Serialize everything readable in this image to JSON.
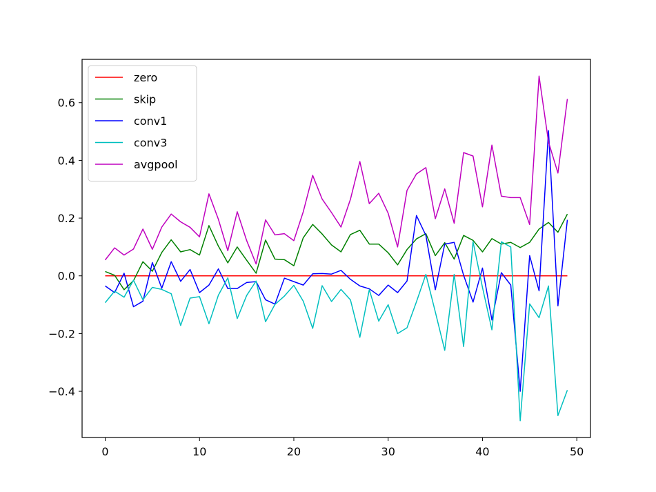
{
  "chart_data": {
    "type": "line",
    "title": "",
    "xlabel": "",
    "ylabel": "",
    "xlim": [
      -2.45,
      51.45
    ],
    "ylim": [
      -0.56,
      0.75
    ],
    "xticks": [
      0,
      10,
      20,
      30,
      40,
      50
    ],
    "yticks": [
      -0.4,
      -0.2,
      0.0,
      0.2,
      0.4,
      0.6
    ],
    "xtick_labels": [
      "0",
      "10",
      "20",
      "30",
      "40",
      "50"
    ],
    "ytick_labels": [
      "−0.4",
      "−0.2",
      "0.0",
      "0.2",
      "0.4",
      "0.6"
    ],
    "grid": false,
    "legend_position": "upper-left",
    "x": [
      0,
      1,
      2,
      3,
      4,
      5,
      6,
      7,
      8,
      9,
      10,
      11,
      12,
      13,
      14,
      15,
      16,
      17,
      18,
      19,
      20,
      21,
      22,
      23,
      24,
      25,
      26,
      27,
      28,
      29,
      30,
      31,
      32,
      33,
      34,
      35,
      36,
      37,
      38,
      39,
      40,
      41,
      42,
      43,
      44,
      45,
      46,
      47,
      48,
      49
    ],
    "series": [
      {
        "name": "zero",
        "color": "#ff0000",
        "values": [
          0,
          0,
          0,
          0,
          0,
          0,
          0,
          0,
          0,
          0,
          0,
          0,
          0,
          0,
          0,
          0,
          0,
          0,
          0,
          0,
          0,
          0,
          0,
          0,
          0,
          0,
          0,
          0,
          0,
          0,
          0,
          0,
          0,
          0,
          0,
          0,
          0,
          0,
          0,
          0,
          0,
          0,
          0,
          0,
          0,
          0,
          0,
          0,
          0,
          0
        ]
      },
      {
        "name": "skip",
        "color": "#008000",
        "values": [
          0.015,
          0.002,
          -0.048,
          -0.017,
          0.049,
          0.016,
          0.081,
          0.125,
          0.083,
          0.091,
          0.072,
          0.174,
          0.103,
          0.045,
          0.1,
          0.054,
          0.009,
          0.124,
          0.058,
          0.056,
          0.035,
          0.132,
          0.178,
          0.145,
          0.107,
          0.083,
          0.143,
          0.158,
          0.11,
          0.11,
          0.08,
          0.038,
          0.091,
          0.128,
          0.146,
          0.07,
          0.115,
          0.058,
          0.14,
          0.123,
          0.083,
          0.129,
          0.11,
          0.116,
          0.098,
          0.116,
          0.162,
          0.185,
          0.151,
          0.214
        ]
      },
      {
        "name": "conv1",
        "color": "#0000ff",
        "values": [
          -0.035,
          -0.058,
          0.009,
          -0.107,
          -0.088,
          0.046,
          -0.043,
          0.049,
          -0.019,
          0.022,
          -0.058,
          -0.032,
          0.024,
          -0.044,
          -0.044,
          -0.023,
          -0.02,
          -0.083,
          -0.098,
          -0.008,
          -0.02,
          -0.032,
          0.007,
          0.008,
          0.006,
          0.019,
          -0.012,
          -0.035,
          -0.045,
          -0.068,
          -0.032,
          -0.058,
          -0.018,
          0.209,
          0.14,
          -0.048,
          0.11,
          0.116,
          0.002,
          -0.091,
          0.027,
          -0.153,
          0.011,
          -0.032,
          -0.4,
          0.07,
          -0.052,
          0.503,
          -0.104,
          0.194
        ]
      },
      {
        "name": "conv3",
        "color": "#00bfbf",
        "values": [
          -0.093,
          -0.053,
          -0.074,
          -0.015,
          -0.083,
          -0.04,
          -0.047,
          -0.062,
          -0.172,
          -0.077,
          -0.072,
          -0.166,
          -0.067,
          -0.007,
          -0.148,
          -0.068,
          -0.018,
          -0.159,
          -0.099,
          -0.07,
          -0.033,
          -0.088,
          -0.182,
          -0.034,
          -0.089,
          -0.047,
          -0.083,
          -0.213,
          -0.048,
          -0.157,
          -0.1,
          -0.2,
          -0.18,
          -0.09,
          0.005,
          -0.125,
          -0.258,
          0.005,
          -0.245,
          0.118,
          -0.04,
          -0.187,
          0.118,
          0.1,
          -0.502,
          -0.097,
          -0.145,
          -0.035,
          -0.484,
          -0.396
        ]
      },
      {
        "name": "avgpool",
        "color": "#bf00bf",
        "values": [
          0.055,
          0.097,
          0.072,
          0.093,
          0.162,
          0.092,
          0.169,
          0.214,
          0.187,
          0.168,
          0.135,
          0.284,
          0.196,
          0.087,
          0.222,
          0.122,
          0.041,
          0.194,
          0.142,
          0.146,
          0.122,
          0.222,
          0.348,
          0.266,
          0.219,
          0.169,
          0.265,
          0.396,
          0.25,
          0.286,
          0.217,
          0.1,
          0.296,
          0.353,
          0.375,
          0.198,
          0.301,
          0.182,
          0.427,
          0.415,
          0.239,
          0.453,
          0.276,
          0.271,
          0.271,
          0.178,
          0.692,
          0.464,
          0.356,
          0.613
        ]
      }
    ]
  }
}
